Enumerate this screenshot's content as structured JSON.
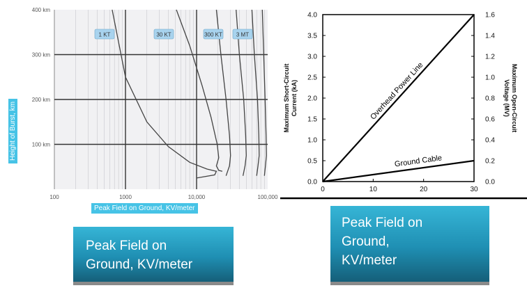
{
  "chart_data": [
    {
      "type": "line",
      "title": "",
      "xlabel": "Peak Field on Ground, KV/meter",
      "ylabel": "Height of Burst, km",
      "xscale": "log",
      "xlim": [
        100,
        100000
      ],
      "ylim": [
        0,
        400
      ],
      "grid": true,
      "x_ticks": [
        "100",
        "1000",
        "10,000",
        "100,000"
      ],
      "y_ticks": [
        "100 km",
        "200 km",
        "300 km",
        "400 km"
      ],
      "series": [
        {
          "name": "1 KT",
          "points": [
            [
              650,
              400
            ],
            [
              1000,
              250
            ],
            [
              2000,
              150
            ],
            [
              4000,
              95
            ],
            [
              8000,
              60
            ],
            [
              14000,
              45
            ],
            [
              19000,
              40
            ],
            [
              18000,
              32
            ],
            [
              10000,
              25
            ]
          ]
        },
        {
          "name": "30 KT",
          "points": [
            [
              5200,
              400
            ],
            [
              8000,
              320
            ],
            [
              12000,
              230
            ],
            [
              16000,
              160
            ],
            [
              19500,
              100
            ],
            [
              20500,
              70
            ],
            [
              19000,
              52
            ],
            [
              20500,
              42
            ],
            [
              23000,
              40
            ]
          ]
        },
        {
          "name": "300 KT",
          "points": [
            [
              19000,
              400
            ],
            [
              22000,
              300
            ],
            [
              26000,
              200
            ],
            [
              29000,
              120
            ],
            [
              30000,
              75
            ],
            [
              29000,
              52
            ],
            [
              26000,
              30
            ]
          ]
        },
        {
          "name": "3 MT",
          "points": [
            [
              36000,
              400
            ],
            [
              40000,
              300
            ],
            [
              46000,
              200
            ],
            [
              49000,
              120
            ],
            [
              50000,
              75
            ],
            [
              48000,
              52
            ],
            [
              45000,
              30
            ]
          ]
        },
        {
          "name": "",
          "points": [
            [
              60000,
              400
            ],
            [
              65000,
              300
            ],
            [
              72000,
              200
            ],
            [
              75000,
              120
            ],
            [
              76000,
              75
            ],
            [
              73000,
              52
            ],
            [
              70000,
              30
            ]
          ]
        },
        {
          "name": "",
          "points": [
            [
              84000,
              400
            ],
            [
              88000,
              300
            ],
            [
              92000,
              200
            ],
            [
              95000,
              120
            ],
            [
              96000,
              75
            ],
            [
              93000,
              52
            ],
            [
              90000,
              30
            ]
          ]
        }
      ]
    },
    {
      "type": "line",
      "title": "",
      "xlabel": "",
      "ylabel": "Maximum Short-Circuit Current (kA)",
      "y2label": "Maximum Open-Circuit Voltage (MV)",
      "xlim": [
        0,
        30
      ],
      "ylim": [
        0,
        4.0
      ],
      "y2lim": [
        0,
        1.6
      ],
      "x_ticks": [
        "0",
        "10",
        "20",
        "30"
      ],
      "y_ticks": [
        "0.0",
        "0.5",
        "1.0",
        "1.5",
        "2.0",
        "2.5",
        "3.0",
        "3.5",
        "4.0"
      ],
      "y2_ticks": [
        "0.0",
        "0.2",
        "0.4",
        "0.6",
        "0.8",
        "1.0",
        "1.2",
        "1.4",
        "1.6"
      ],
      "grid": false,
      "series": [
        {
          "name": "Overhead Power Line",
          "x": [
            0,
            30
          ],
          "y": [
            0.0,
            4.0
          ]
        },
        {
          "name": "Ground Cable",
          "x": [
            0,
            30
          ],
          "y": [
            0.0,
            0.5
          ]
        }
      ]
    }
  ],
  "captions": {
    "left": "Peak Field on\nGround, KV/meter",
    "right": "Peak Field on\nGround,\nKV/meter"
  }
}
